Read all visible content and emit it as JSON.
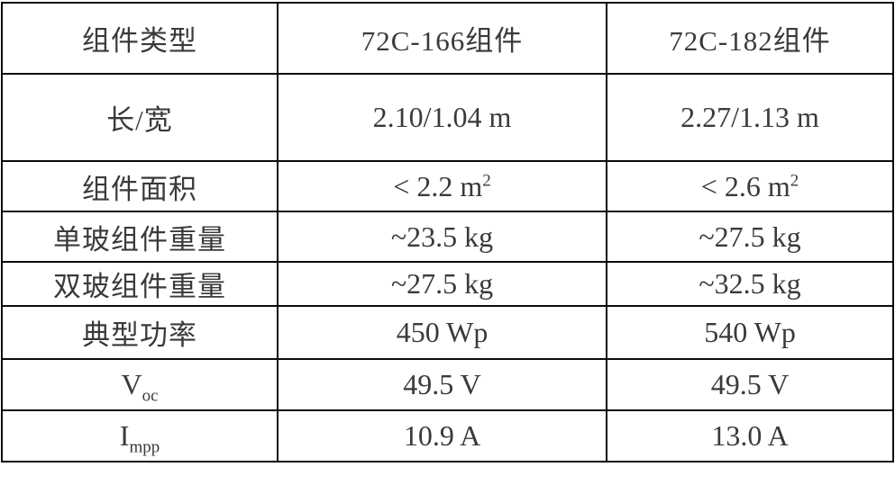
{
  "colors": {
    "text": "#3a3a3a",
    "grid_border": "#0a0a0a",
    "background": "#ffffff"
  },
  "table": {
    "header": {
      "col0": "组件类型",
      "col1": "72C-166组件",
      "col2": "72C-182组件"
    },
    "rows": [
      {
        "label": "长/宽",
        "col1": "2.10/1.04 m",
        "col2": "2.27/1.13 m"
      },
      {
        "label": "组件面积",
        "col1": "< 2.2 m",
        "col1_sup": "2",
        "col2": "< 2.6 m",
        "col2_sup": "2"
      },
      {
        "label": "单玻组件重量",
        "col1": "~23.5 kg",
        "col2": "~27.5 kg"
      },
      {
        "label": "双玻组件重量",
        "col1": "~27.5 kg",
        "col2": "~32.5 kg"
      },
      {
        "label": "典型功率",
        "col1": "450 Wp",
        "col2": "540 Wp"
      },
      {
        "label": "V",
        "label_sub": "oc",
        "col1": "49.5 V",
        "col2": "49.5 V"
      },
      {
        "label": "I",
        "label_sub": "mpp",
        "col1": "10.9 A",
        "col2": "13.0 A"
      }
    ]
  }
}
